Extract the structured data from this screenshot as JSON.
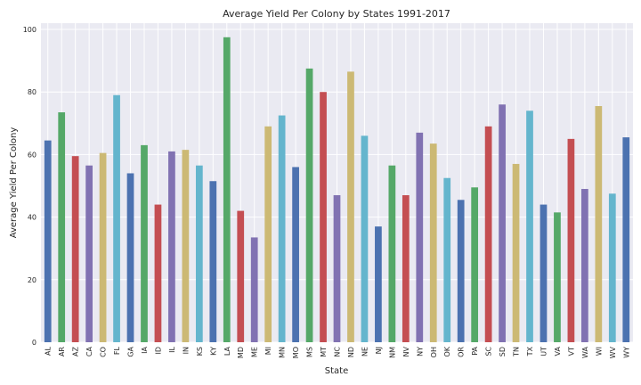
{
  "chart_data": {
    "type": "bar",
    "title": "Average Yield Per Colony by States 1991-2017",
    "xlabel": "State",
    "ylabel": "Average Yield Per Colony",
    "ylim": [
      0,
      102
    ],
    "yticks": [
      0,
      20,
      40,
      60,
      80,
      100
    ],
    "grid": true,
    "categories": [
      "AL",
      "AR",
      "AZ",
      "CA",
      "CO",
      "FL",
      "GA",
      "IA",
      "ID",
      "IL",
      "IN",
      "KS",
      "KY",
      "LA",
      "MD",
      "ME",
      "MI",
      "MN",
      "MO",
      "MS",
      "MT",
      "NC",
      "ND",
      "NE",
      "NJ",
      "NM",
      "NV",
      "NY",
      "OH",
      "OK",
      "OR",
      "PA",
      "SC",
      "SD",
      "TN",
      "TX",
      "UT",
      "VA",
      "VT",
      "WA",
      "WI",
      "WV",
      "WY"
    ],
    "values": [
      64.5,
      73.5,
      59.5,
      56.5,
      60.5,
      79,
      54,
      63,
      44,
      61,
      61.5,
      56.5,
      51.5,
      97.5,
      42,
      33.5,
      69,
      72.5,
      56,
      87.5,
      80,
      47,
      86.5,
      66,
      37,
      56.5,
      47,
      67,
      63.5,
      52.5,
      45.5,
      49.5,
      69,
      76,
      57,
      74,
      44,
      41.5,
      65,
      49,
      75.5,
      47.5,
      65.5
    ],
    "colors": [
      "#4C72B0",
      "#55A868",
      "#C44E52",
      "#8172B2",
      "#CCB974",
      "#64B5CD"
    ]
  }
}
